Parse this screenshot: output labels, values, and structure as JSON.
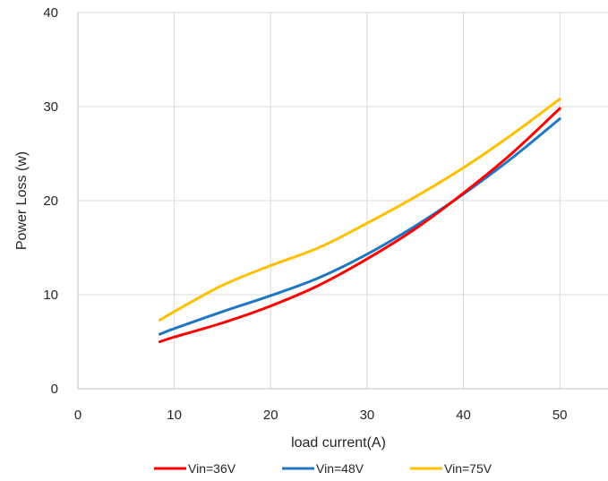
{
  "chart_data": {
    "type": "line",
    "title": "",
    "xlabel": "load current(A)",
    "ylabel": "Power Loss (w)",
    "xlim": [
      0,
      55
    ],
    "ylim": [
      0,
      40
    ],
    "x_ticks": [
      0,
      10,
      20,
      30,
      40,
      50
    ],
    "y_ticks": [
      0,
      10,
      20,
      30,
      40
    ],
    "grid": "vertical-and-horizontal",
    "legend_position": "bottom",
    "series": [
      {
        "name": "Vin=36V",
        "color": "#ff0000",
        "x": [
          8.5,
          10,
          15,
          20,
          25,
          30,
          35,
          40,
          45,
          50
        ],
        "y": [
          5.0,
          5.5,
          7.0,
          8.8,
          11.0,
          13.8,
          17.0,
          20.8,
          25.0,
          29.8
        ]
      },
      {
        "name": "Vin=48V",
        "color": "#1f77c4",
        "x": [
          8.5,
          10,
          15,
          20,
          25,
          30,
          35,
          40,
          45,
          50
        ],
        "y": [
          5.8,
          6.4,
          8.2,
          9.9,
          11.8,
          14.3,
          17.3,
          20.7,
          24.5,
          28.7
        ]
      },
      {
        "name": "Vin=75V",
        "color": "#ffc000",
        "x": [
          8.5,
          10,
          15,
          20,
          25,
          30,
          35,
          40,
          45,
          50
        ],
        "y": [
          7.3,
          8.2,
          11.0,
          13.1,
          15.0,
          17.6,
          20.4,
          23.5,
          27.0,
          30.8
        ]
      }
    ]
  }
}
